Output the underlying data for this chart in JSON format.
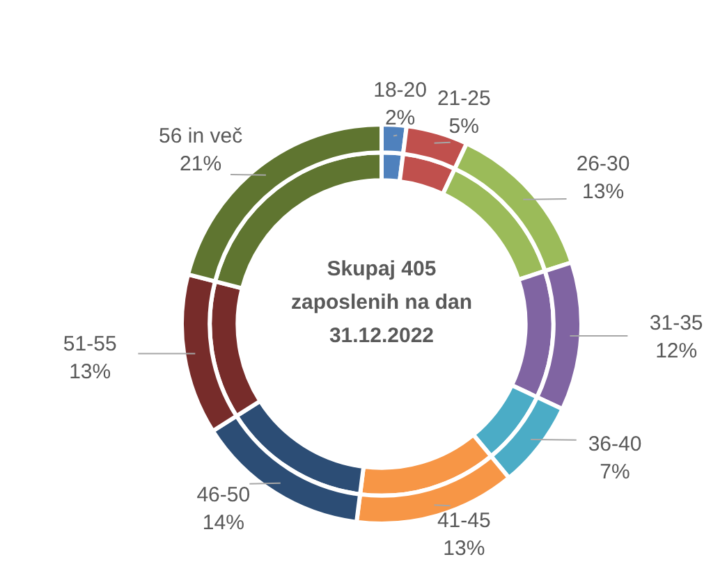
{
  "chart_data": {
    "type": "donut",
    "title": "Skupaj 405 zaposlenih na dan 31.12.2022",
    "categories": [
      "18-20",
      "21-25",
      "26-30",
      "31-35",
      "36-40",
      "41-45",
      "46-50",
      "51-55",
      "56 in več"
    ],
    "series": [
      {
        "values": [
          2,
          5,
          13,
          12,
          7,
          13,
          14,
          13,
          21
        ],
        "colors": [
          "#4f81bd",
          "#c0504d",
          "#9bbb59",
          "#8064a2",
          "#4bacc6",
          "#f79646",
          "#2c4d75",
          "#772c2a",
          "#5f7530"
        ],
        "value_labels": [
          "2%",
          "5%",
          "13%",
          "12%",
          "7%",
          "13%",
          "14%",
          "13%",
          "21%"
        ]
      },
      {
        "values": [
          2,
          5,
          13,
          12,
          7,
          13,
          14,
          13,
          21
        ],
        "colors": [
          "#4f81bd",
          "#c0504d",
          "#9bbb59",
          "#8064a2",
          "#4bacc6",
          "#f79646",
          "#2c4d75",
          "#772c2a",
          "#5f7530"
        ]
      }
    ],
    "legend": false
  }
}
